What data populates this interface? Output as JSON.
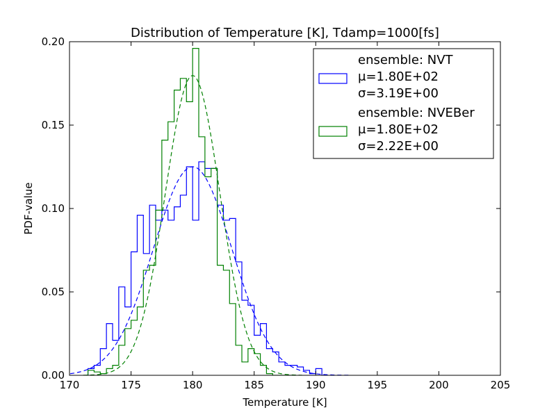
{
  "chart_data": {
    "type": "histogram",
    "title": "Distribution of Temperature [K], Tdamp=1000[fs]",
    "xlabel": "Temperature [K]",
    "ylabel": "PDF-value",
    "xlim": [
      170,
      205
    ],
    "ylim": [
      0,
      0.2
    ],
    "xticks": [
      170,
      175,
      180,
      185,
      190,
      195,
      200,
      205
    ],
    "xtick_labels": [
      "170",
      "175",
      "180",
      "185",
      "190",
      "195",
      "200",
      "205"
    ],
    "yticks": [
      0,
      0.05,
      0.1,
      0.15,
      0.2
    ],
    "ytick_labels": [
      "0.00",
      "0.05",
      "0.10",
      "0.15",
      "0.20"
    ],
    "grid": false,
    "legend_position": "top-right",
    "series": [
      {
        "name": "ensemble: NVT",
        "mu_label": "μ=1.80E+02",
        "sigma_label": "σ=3.19E+00",
        "color": "#0000ff",
        "mean": 180.0,
        "std": 3.19,
        "bin_edges": [
          171.5,
          172.0,
          172.5,
          173.0,
          173.5,
          174.0,
          174.5,
          175.0,
          175.5,
          176.0,
          176.5,
          177.0,
          177.5,
          178.0,
          178.5,
          179.0,
          179.5,
          180.0,
          180.5,
          181.0,
          181.5,
          182.0,
          182.5,
          183.0,
          183.5,
          184.0,
          184.5,
          185.0,
          185.5,
          186.0,
          186.5,
          187.0,
          187.5,
          188.0,
          188.5,
          189.0,
          189.5,
          190.0,
          190.5,
          191.0
        ],
        "values": [
          0.004,
          0.006,
          0.016,
          0.031,
          0.021,
          0.053,
          0.041,
          0.074,
          0.096,
          0.073,
          0.102,
          0.093,
          0.099,
          0.093,
          0.101,
          0.108,
          0.125,
          0.093,
          0.128,
          0.124,
          0.124,
          0.102,
          0.093,
          0.094,
          0.068,
          0.045,
          0.042,
          0.024,
          0.031,
          0.016,
          0.014,
          0.008,
          0.006,
          0.006,
          0.005,
          0.003,
          0.001,
          0.004,
          0.0
        ]
      },
      {
        "name": "ensemble: NVEBer",
        "mu_label": "μ=1.80E+02",
        "sigma_label": "σ=2.22E+00",
        "color": "#008000",
        "mean": 180.0,
        "std": 2.22,
        "bin_edges": [
          171.5,
          172.0,
          172.5,
          173.0,
          173.5,
          174.0,
          174.5,
          175.0,
          175.5,
          176.0,
          176.5,
          177.0,
          177.5,
          178.0,
          178.5,
          179.0,
          179.5,
          180.0,
          180.5,
          181.0,
          181.5,
          182.0,
          182.5,
          183.0,
          183.5,
          184.0,
          184.5,
          185.0,
          185.5,
          186.0,
          186.5,
          187.0,
          187.5,
          188.0
        ],
        "values": [
          0.003,
          0.002,
          0.001,
          0.004,
          0.006,
          0.018,
          0.028,
          0.033,
          0.041,
          0.063,
          0.066,
          0.099,
          0.141,
          0.152,
          0.171,
          0.178,
          0.164,
          0.196,
          0.143,
          0.119,
          0.124,
          0.066,
          0.063,
          0.043,
          0.018,
          0.008,
          0.016,
          0.013,
          0.006,
          0.001,
          0.0,
          0.0,
          0.0
        ]
      }
    ]
  }
}
